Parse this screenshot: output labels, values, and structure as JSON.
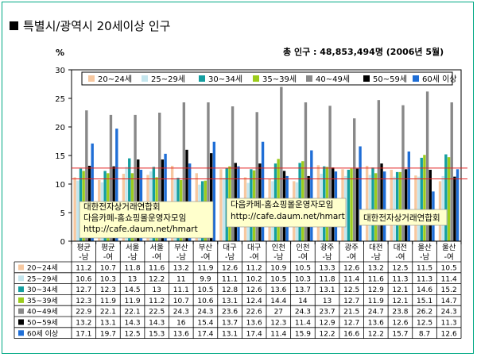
{
  "title": "특별시/광역시 20세이상 인구",
  "total_text": "총 인구 : 48,853,494명 (2006년 5월)",
  "unit": "%",
  "colors": {
    "frame": "#00a884",
    "hline": "#e02020",
    "series": [
      "#f7c8a0",
      "#c4e6ee",
      "#149ea0",
      "#9ccc1c",
      "#888888",
      "#000000",
      "#1f6ed6"
    ]
  },
  "annotations": [
    {
      "lines": [
        "대한전자상거래연합회",
        "다음카페-홈쇼핑몰운영자모임",
        "http://cafe.daum.net/hmart"
      ]
    },
    {
      "lines": [
        "다음카페-홈쇼핑몰운영자모임",
        "http://cafe.daum.net/hmart"
      ]
    },
    {
      "lines": [
        "대한전자상거래연합회"
      ]
    }
  ],
  "chart_data": {
    "type": "bar",
    "ylim": [
      0,
      30
    ],
    "yticks": [
      0,
      5,
      10,
      15,
      20,
      25,
      30
    ],
    "ylabel": "%",
    "hlines": [
      10.9,
      12.8
    ],
    "legend_position": "top",
    "categories": [
      [
        "평균",
        "-남"
      ],
      [
        "평균",
        "-여"
      ],
      [
        "서울",
        "-남"
      ],
      [
        "서울",
        "-여"
      ],
      [
        "부산",
        "-남"
      ],
      [
        "부산",
        "-여"
      ],
      [
        "대구",
        "-남"
      ],
      [
        "대구",
        "-여"
      ],
      [
        "인천",
        "-남"
      ],
      [
        "인천",
        "-여"
      ],
      [
        "광주",
        "-남"
      ],
      [
        "광주",
        "-여"
      ],
      [
        "대전",
        "-남"
      ],
      [
        "대전",
        "-여"
      ],
      [
        "울산",
        "-남"
      ],
      [
        "울산",
        "-여"
      ]
    ],
    "series": [
      {
        "name": "20~24세",
        "values": [
          11.2,
          10.7,
          11.8,
          11.6,
          13.2,
          11.9,
          12.6,
          11.2,
          10.9,
          10.5,
          13.3,
          12.6,
          13.2,
          12.5,
          11.5,
          10.5
        ]
      },
      {
        "name": "25~29세",
        "values": [
          10.6,
          10.3,
          13,
          12.2,
          11,
          9.9,
          11.1,
          10.2,
          10.5,
          10.3,
          11.8,
          11.4,
          11.6,
          11.3,
          11.3,
          11.4
        ]
      },
      {
        "name": "30~34세",
        "values": [
          12.7,
          12.3,
          14.5,
          13,
          11.1,
          10.5,
          12.8,
          12.6,
          13.6,
          13.7,
          13.1,
          12.5,
          12.9,
          12.1,
          14.6,
          15.2
        ]
      },
      {
        "name": "35~39세",
        "values": [
          12.3,
          11.9,
          11.9,
          11.2,
          10.7,
          10.6,
          13.1,
          12.4,
          14.4,
          14,
          13,
          12.7,
          11.9,
          12.1,
          15.1,
          14.7
        ]
      },
      {
        "name": "40~49세",
        "values": [
          22.9,
          22.1,
          22.1,
          22.5,
          24.3,
          24.3,
          23.6,
          22.6,
          27,
          24.3,
          23.7,
          21.5,
          24.7,
          23.8,
          26.2,
          24.3
        ]
      },
      {
        "name": "50~59세",
        "values": [
          13.2,
          13.1,
          14.3,
          14.3,
          16,
          15.4,
          13.7,
          13.6,
          12.3,
          11.4,
          12.9,
          12.7,
          13.6,
          12.6,
          12.5,
          11.3
        ]
      },
      {
        "name": "60세 이상",
        "values": [
          17.1,
          19.7,
          12.5,
          15.3,
          13.6,
          17.4,
          13.1,
          17.4,
          11.4,
          15.9,
          12.2,
          16.6,
          12.2,
          15.7,
          8.7,
          12.6
        ]
      }
    ]
  }
}
